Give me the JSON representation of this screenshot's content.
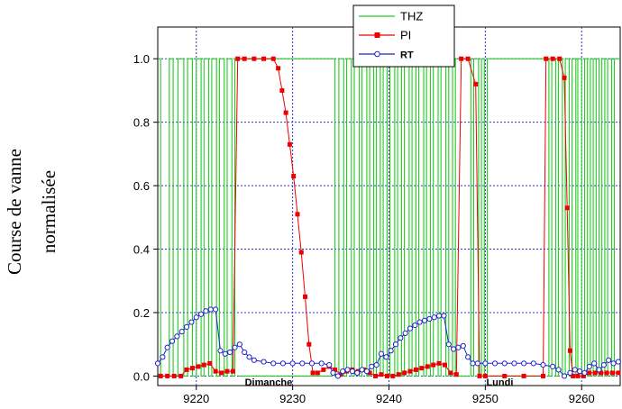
{
  "chart_data": {
    "type": "line",
    "title": "",
    "xlabel": "",
    "ylabel": [
      "Course de vanne",
      "normalisée"
    ],
    "xlim": [
      9216,
      9264
    ],
    "ylim": [
      -0.03,
      1.1
    ],
    "x_ticks": [
      9220,
      9230,
      9240,
      9250,
      9260
    ],
    "y_ticks": [
      0.0,
      0.2,
      0.4,
      0.6,
      0.8,
      1.0
    ],
    "y_tick_labels": [
      "0.0",
      "0.2",
      "0.4",
      "0.6",
      "0.8",
      "1.0"
    ],
    "grid": true,
    "legend_position": "top-center",
    "annotations": [
      {
        "text": "Dimanche",
        "x": 9227.5,
        "y": -0.03
      },
      {
        "text": "Lundi",
        "x": 9251.5,
        "y": -0.03
      }
    ],
    "series": [
      {
        "name": "THZ",
        "color": "#22cc22",
        "marker": "none",
        "style": "switching",
        "off_segments": [
          [
            9224.4,
            9234.0
          ],
          [
            9247.2,
            9248.3
          ],
          [
            9250.5,
            9256.3
          ]
        ],
        "switch_intervals": [
          [
            9216.3,
            9217.2
          ],
          [
            9217.6,
            9218.1
          ],
          [
            9218.7,
            9219.1
          ],
          [
            9219.6,
            9220.0
          ],
          [
            9220.5,
            9220.8
          ],
          [
            9221.3,
            9221.6
          ],
          [
            9222.1,
            9222.4
          ],
          [
            9222.9,
            9223.2
          ],
          [
            9223.7,
            9224.0
          ],
          [
            9234.4,
            9234.8
          ],
          [
            9235.3,
            9235.6
          ],
          [
            9236.1,
            9236.4
          ],
          [
            9236.9,
            9237.2
          ],
          [
            9237.7,
            9238.0
          ],
          [
            9238.4,
            9238.7
          ],
          [
            9239.1,
            9239.4
          ],
          [
            9239.8,
            9240.1
          ],
          [
            9240.6,
            9240.9
          ],
          [
            9241.3,
            9241.6
          ],
          [
            9242.1,
            9242.4
          ],
          [
            9242.8,
            9243.1
          ],
          [
            9243.6,
            9243.9
          ],
          [
            9244.3,
            9244.6
          ],
          [
            9245.1,
            9245.4
          ],
          [
            9245.9,
            9246.2
          ],
          [
            9246.6,
            9246.9
          ],
          [
            9248.5,
            9248.8
          ],
          [
            9249.3,
            9249.6
          ],
          [
            9249.9,
            9250.2
          ],
          [
            9256.6,
            9256.9
          ],
          [
            9257.3,
            9257.6
          ],
          [
            9258.0,
            9258.3
          ],
          [
            9258.7,
            9259.0
          ],
          [
            9259.4,
            9259.6
          ],
          [
            9260.0,
            9260.3
          ],
          [
            9260.6,
            9260.9
          ],
          [
            9261.2,
            9261.5
          ],
          [
            9261.8,
            9262.1
          ],
          [
            9262.4,
            9262.7
          ],
          [
            9263.1,
            9263.4
          ]
        ]
      },
      {
        "name": "PI",
        "color": "#ee0000",
        "marker": "square",
        "x": [
          9216.3,
          9217.0,
          9217.7,
          9218.4,
          9219.0,
          9219.6,
          9220.2,
          9220.8,
          9221.4,
          9222.0,
          9222.6,
          9223.2,
          9223.8,
          9224.3,
          9225.0,
          9226.0,
          9227.0,
          9228.0,
          9228.5,
          9228.9,
          9229.3,
          9229.7,
          9230.1,
          9230.5,
          9230.9,
          9231.3,
          9231.7,
          9232.1,
          9232.6,
          9233.2,
          9233.8,
          9234.4,
          9235.0,
          9235.6,
          9236.2,
          9236.8,
          9237.4,
          9238.0,
          9238.6,
          9239.2,
          9239.8,
          9240.4,
          9241.0,
          9241.6,
          9242.2,
          9242.8,
          9243.4,
          9244.0,
          9244.6,
          9245.2,
          9245.8,
          9246.4,
          9247.0,
          9247.5,
          9248.2,
          9249.0,
          9249.4,
          9250.0,
          9252.0,
          9254.0,
          9256.0,
          9256.3,
          9257.0,
          9257.7,
          9258.2,
          9258.5,
          9258.8,
          9259.1,
          9259.6,
          9260.2,
          9260.8,
          9261.4,
          9262.0,
          9262.6,
          9263.2,
          9263.8
        ],
        "y": [
          0.0,
          0.0,
          0.0,
          0.0,
          0.02,
          0.025,
          0.03,
          0.035,
          0.04,
          0.015,
          0.01,
          0.015,
          0.015,
          1.0,
          1.0,
          1.0,
          1.0,
          1.0,
          0.97,
          0.9,
          0.83,
          0.73,
          0.63,
          0.51,
          0.39,
          0.25,
          0.1,
          0.01,
          0.01,
          0.02,
          0.03,
          0.02,
          0.005,
          0.015,
          0.02,
          0.015,
          0.02,
          0.01,
          0.0,
          0.005,
          0.0,
          0.0,
          0.005,
          0.01,
          0.015,
          0.02,
          0.025,
          0.03,
          0.035,
          0.04,
          0.035,
          0.01,
          0.005,
          1.0,
          1.0,
          0.92,
          0.0,
          0.0,
          0.0,
          0.0,
          0.0,
          1.0,
          1.0,
          1.0,
          0.94,
          0.53,
          0.08,
          0.0,
          0.0,
          0.0,
          0.01,
          0.01,
          0.01,
          0.01,
          0.01,
          0.01
        ]
      },
      {
        "name": "RT",
        "color": "#2222cc",
        "marker": "circle-open",
        "x": [
          9216.0,
          9216.5,
          9217.0,
          9217.5,
          9218.0,
          9218.5,
          9219.0,
          9219.5,
          9220.0,
          9220.5,
          9221.0,
          9221.5,
          9222.0,
          9222.5,
          9223.0,
          9223.5,
          9224.0,
          9224.5,
          9225.0,
          9225.5,
          9226.0,
          9227.0,
          9228.0,
          9229.0,
          9230.0,
          9231.0,
          9232.0,
          9233.0,
          9233.8,
          9234.2,
          9234.7,
          9235.2,
          9235.7,
          9236.2,
          9236.7,
          9237.2,
          9237.7,
          9238.2,
          9238.7,
          9239.2,
          9239.7,
          9240.2,
          9240.7,
          9241.2,
          9241.7,
          9242.2,
          9242.7,
          9243.2,
          9243.7,
          9244.2,
          9244.7,
          9245.2,
          9245.7,
          9246.2,
          9246.7,
          9247.2,
          9247.7,
          9248.2,
          9248.7,
          9249.2,
          9250.0,
          9251.0,
          9252.0,
          9253.0,
          9254.0,
          9255.0,
          9256.0,
          9257.0,
          9257.6,
          9258.2,
          9258.8,
          9259.3,
          9259.8,
          9260.3,
          9260.8,
          9261.3,
          9261.8,
          9262.3,
          9262.8,
          9263.3,
          9263.8
        ],
        "y": [
          0.04,
          0.06,
          0.09,
          0.11,
          0.125,
          0.14,
          0.155,
          0.17,
          0.185,
          0.195,
          0.205,
          0.21,
          0.21,
          0.08,
          0.07,
          0.075,
          0.09,
          0.1,
          0.075,
          0.06,
          0.05,
          0.045,
          0.04,
          0.04,
          0.04,
          0.04,
          0.04,
          0.04,
          0.035,
          0.01,
          0.0,
          0.015,
          0.02,
          0.015,
          0.01,
          0.02,
          0.015,
          0.03,
          0.035,
          0.07,
          0.06,
          0.08,
          0.1,
          0.12,
          0.135,
          0.15,
          0.16,
          0.17,
          0.175,
          0.18,
          0.185,
          0.19,
          0.19,
          0.1,
          0.085,
          0.09,
          0.095,
          0.06,
          0.04,
          0.04,
          0.04,
          0.04,
          0.04,
          0.04,
          0.04,
          0.04,
          0.035,
          0.03,
          0.02,
          0.0,
          0.01,
          0.02,
          0.015,
          0.01,
          0.03,
          0.04,
          0.02,
          0.035,
          0.05,
          0.04,
          0.045
        ]
      }
    ]
  }
}
